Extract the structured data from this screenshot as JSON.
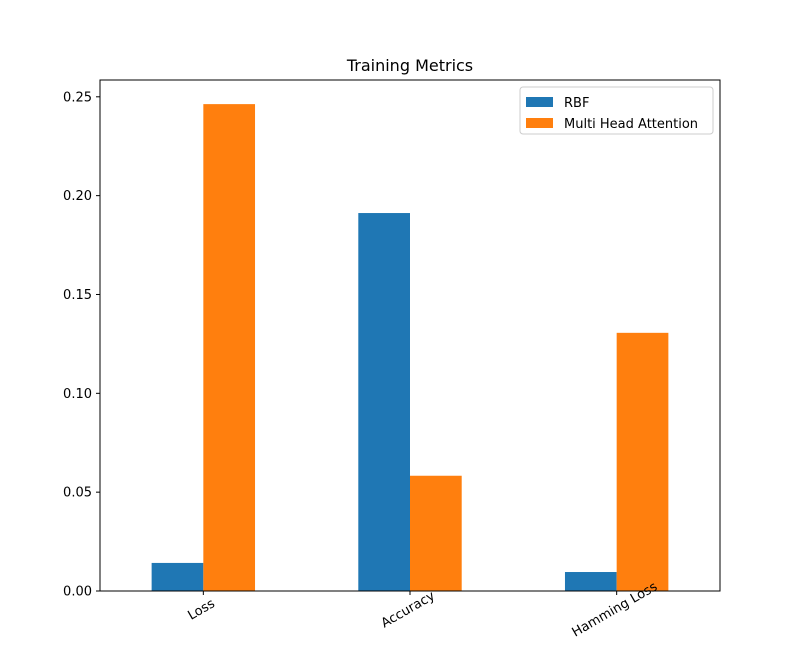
{
  "chart_data": {
    "type": "bar",
    "title": "Training Metrics",
    "xlabel": "",
    "ylabel": "",
    "categories": [
      "Loss",
      "Accuracy",
      "Hamming Loss"
    ],
    "series": [
      {
        "name": "RBF",
        "values": [
          0.0142,
          0.1912,
          0.0096
        ],
        "color": "#1f77b4"
      },
      {
        "name": "Multi Head Attention",
        "values": [
          0.2463,
          0.0583,
          0.1306
        ],
        "color": "#ff7f0e"
      }
    ],
    "ylim": [
      0,
      0.2585
    ],
    "yticks": [
      {
        "value": 0.0,
        "label": "0.00"
      },
      {
        "value": 0.05,
        "label": "0.05"
      },
      {
        "value": 0.1,
        "label": "0.10"
      },
      {
        "value": 0.15,
        "label": "0.15"
      },
      {
        "value": 0.2,
        "label": "0.20"
      },
      {
        "value": 0.25,
        "label": "0.25"
      }
    ],
    "legend_position": "top-right",
    "grid": false,
    "xtick_rotation": -30
  }
}
